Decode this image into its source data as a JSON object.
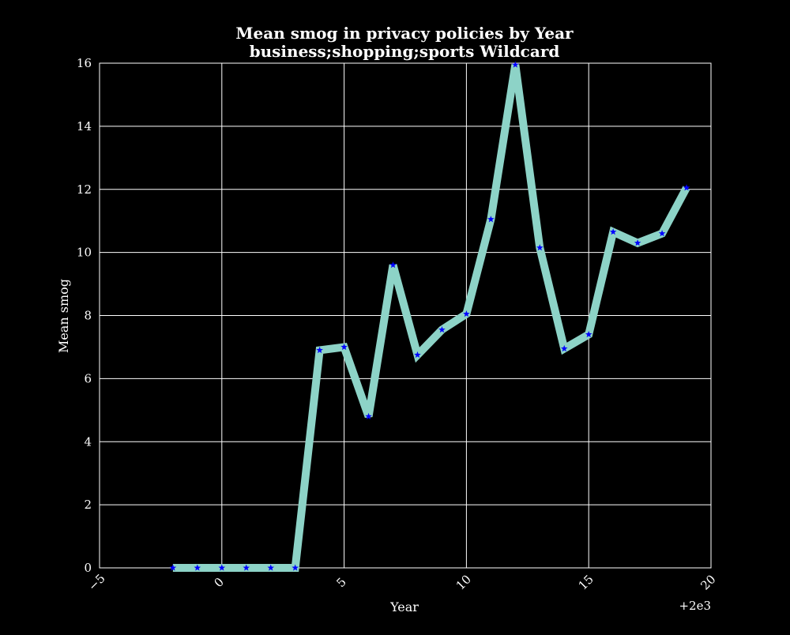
{
  "chart_data": {
    "type": "line",
    "title": "Mean smog in privacy policies by Year",
    "subtitle": "business;shopping;sports Wildcard",
    "xlabel": "Year",
    "ylabel": "Mean smog",
    "x_offset_label": "+2e3",
    "xlim": [
      -5,
      20
    ],
    "ylim": [
      0,
      16
    ],
    "x_ticks": [
      -5,
      0,
      5,
      10,
      15,
      20
    ],
    "x_tick_labels": [
      "−5",
      "0",
      "5",
      "10",
      "15",
      "20"
    ],
    "y_ticks": [
      0,
      2,
      4,
      6,
      8,
      10,
      12,
      14,
      16
    ],
    "y_tick_labels": [
      "0",
      "2",
      "4",
      "6",
      "8",
      "10",
      "12",
      "14",
      "16"
    ],
    "grid": true,
    "line_color": "#8dd3c7",
    "marker_color": "#0000ff",
    "background": "#000000",
    "series": [
      {
        "x": [
          -2,
          -1,
          0,
          1,
          2,
          3,
          4,
          5,
          6,
          7,
          8,
          9,
          10,
          11,
          12,
          13,
          14,
          15,
          16,
          17,
          18,
          19
        ],
        "values": [
          0,
          0,
          0,
          0,
          0,
          0,
          6.9,
          7.0,
          4.8,
          9.6,
          6.75,
          7.55,
          8.05,
          11.05,
          15.95,
          10.15,
          6.95,
          7.4,
          10.65,
          10.3,
          10.6,
          12.05
        ]
      }
    ]
  }
}
